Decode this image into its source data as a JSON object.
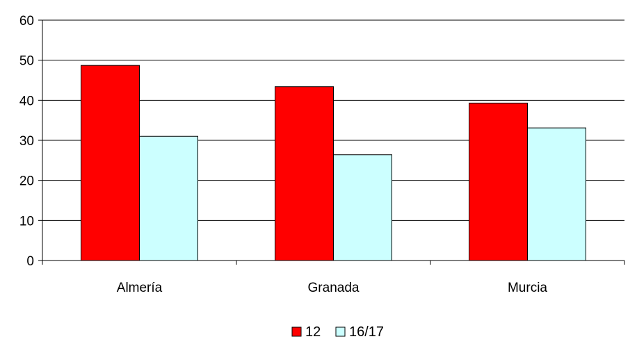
{
  "chart_data": {
    "type": "bar",
    "categories": [
      "Almería",
      "Granada",
      "Murcia"
    ],
    "series": [
      {
        "name": "12",
        "values": [
          48.7,
          43.4,
          39.3
        ],
        "color": "#ff0000"
      },
      {
        "name": "16/17",
        "values": [
          31.0,
          26.4,
          33.1
        ],
        "color": "#ccffff"
      }
    ],
    "ylim": [
      0,
      60
    ],
    "yticks": [
      0,
      10,
      20,
      30,
      40,
      50,
      60
    ],
    "grid": true,
    "legend_position": "bottom"
  }
}
